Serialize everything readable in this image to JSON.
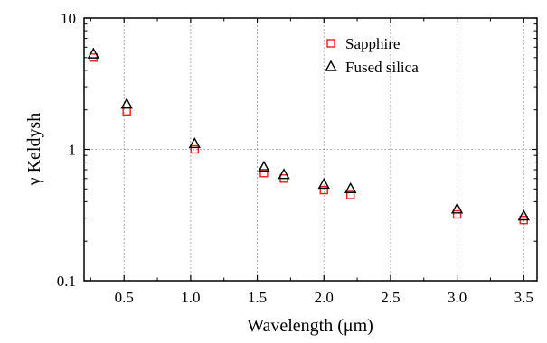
{
  "chart_data": {
    "type": "scatter",
    "title": "",
    "xlabel": "Wavelength (μm)",
    "ylabel": "γ Keldysh",
    "xlim": [
      0.2,
      3.6
    ],
    "ylim": [
      0.1,
      10
    ],
    "yscale": "log",
    "grid": true,
    "legend_position": "top-right",
    "x_ticks": [
      0.5,
      1.0,
      1.5,
      2.0,
      2.5,
      3.0,
      3.5
    ],
    "x_tick_labels": [
      "0.5",
      "1.0",
      "1.5",
      "2.0",
      "2.5",
      "3.0",
      "3.5"
    ],
    "y_ticks": [
      0.1,
      1,
      10
    ],
    "y_tick_labels": [
      "0.1",
      "1",
      "10"
    ],
    "series": [
      {
        "name": "Sapphire",
        "marker": "square",
        "color": "#e8201c",
        "x": [
          0.27,
          0.52,
          1.03,
          1.55,
          1.7,
          2.0,
          2.2,
          3.0,
          3.5
        ],
        "y": [
          5.0,
          1.95,
          1.0,
          0.66,
          0.6,
          0.49,
          0.45,
          0.32,
          0.29
        ]
      },
      {
        "name": "Fused silica",
        "marker": "triangle",
        "color": "#000000",
        "x": [
          0.27,
          0.52,
          1.03,
          1.55,
          1.7,
          2.0,
          2.2,
          3.0,
          3.5
        ],
        "y": [
          5.3,
          2.2,
          1.1,
          0.73,
          0.64,
          0.54,
          0.5,
          0.35,
          0.31
        ]
      }
    ]
  }
}
